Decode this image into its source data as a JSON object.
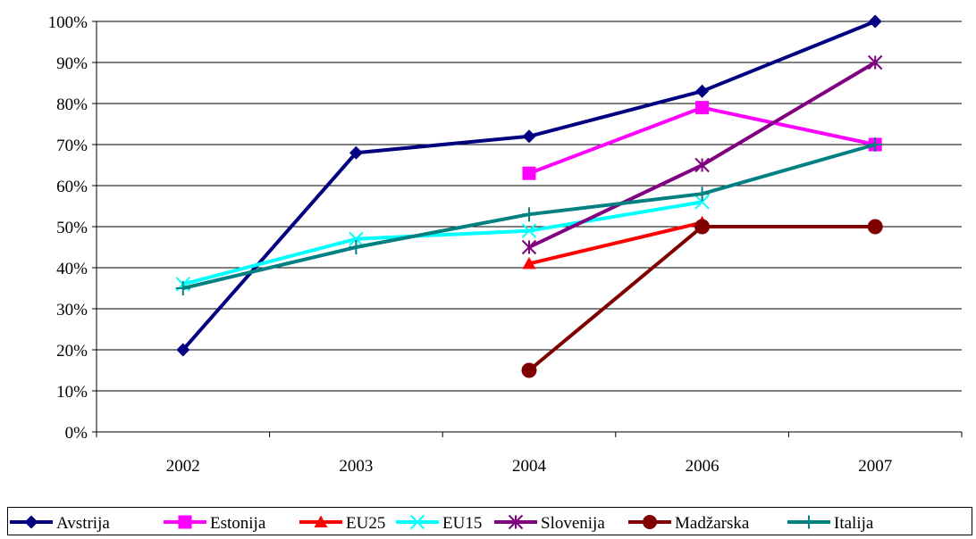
{
  "chart_data": {
    "type": "line",
    "categories": [
      "2002",
      "2003",
      "2004",
      "2006",
      "2007"
    ],
    "y_ticks": [
      "0%",
      "10%",
      "20%",
      "30%",
      "40%",
      "50%",
      "60%",
      "70%",
      "80%",
      "90%",
      "100%"
    ],
    "ylim": [
      0,
      100
    ],
    "grid": true,
    "legend_position": "bottom",
    "series": [
      {
        "name": "Avstrija",
        "color": "#000080",
        "marker": "diamond",
        "values": [
          20,
          68,
          72,
          83,
          100
        ]
      },
      {
        "name": "Estonija",
        "color": "#FF00FF",
        "marker": "square",
        "values": [
          null,
          null,
          63,
          79,
          70
        ]
      },
      {
        "name": "EU25",
        "color": "#FF0000",
        "marker": "triangle",
        "values": [
          null,
          null,
          41,
          51,
          null
        ]
      },
      {
        "name": "EU15",
        "color": "#00FFFF",
        "marker": "x",
        "values": [
          36,
          47,
          49,
          56,
          null
        ]
      },
      {
        "name": "Slovenija",
        "color": "#800080",
        "marker": "asterisk",
        "values": [
          null,
          null,
          45,
          65,
          90
        ]
      },
      {
        "name": "Madžarska",
        "color": "#800000",
        "marker": "circle",
        "values": [
          null,
          null,
          15,
          50,
          50
        ]
      },
      {
        "name": "Italija",
        "color": "#008080",
        "marker": "plus",
        "values": [
          35,
          45,
          53,
          58,
          70
        ]
      }
    ]
  }
}
